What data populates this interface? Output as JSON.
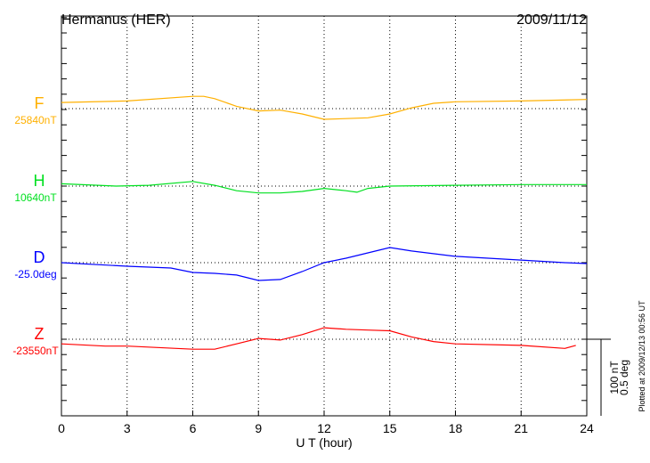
{
  "chart_data": {
    "type": "line",
    "title": "Hermanus (HER)",
    "date": "2009/11/12",
    "xlabel": "U T (hour)",
    "xlim": [
      0,
      24
    ],
    "xticks": [
      "0",
      "3",
      "6",
      "9",
      "12",
      "15",
      "18",
      "21",
      "24"
    ],
    "grid": true,
    "scale_label_1": "100 nT",
    "scale_label_2": "0.5 deg",
    "footer": "Plotted at 2009/12/13 00:56 UT",
    "series": [
      {
        "name": "F",
        "baseline_label": "25840nT",
        "baseline": 25840,
        "unit": "nT",
        "color": "#ffb000",
        "x": [
          0,
          3,
          6,
          6.5,
          7,
          8,
          9,
          10,
          11,
          12,
          13,
          14,
          15,
          16,
          17,
          18,
          21,
          24
        ],
        "values": [
          25848,
          25850,
          25856,
          25856,
          25853,
          25843,
          25837,
          25838,
          25833,
          25826,
          25827,
          25828,
          25833,
          25841,
          25847,
          25849,
          25850,
          25852
        ]
      },
      {
        "name": "H",
        "baseline_label": "10640nT",
        "baseline": 10640,
        "unit": "nT",
        "color": "#00e020",
        "x": [
          0,
          2.5,
          4,
          6,
          7,
          8,
          9,
          10,
          11,
          12,
          13,
          13.5,
          14,
          15,
          18,
          21,
          24
        ],
        "values": [
          10643,
          10640,
          10641,
          10646,
          10641,
          10634,
          10631,
          10631,
          10633,
          10637,
          10634,
          10632,
          10637,
          10640,
          10641,
          10642,
          10642
        ]
      },
      {
        "name": "D",
        "baseline_label": "-25.0deg",
        "baseline": -25.0,
        "unit": "deg",
        "color": "#0000ff",
        "x": [
          0,
          3,
          5,
          6,
          7,
          8,
          9,
          10,
          11,
          12,
          13,
          14,
          15,
          16,
          18,
          21,
          23,
          24
        ],
        "values": [
          -25.0,
          -25.023,
          -25.035,
          -25.064,
          -25.07,
          -25.081,
          -25.116,
          -25.11,
          -25.058,
          -25.0,
          -24.971,
          -24.936,
          -24.901,
          -24.924,
          -24.959,
          -24.983,
          -25.0,
          -25.006
        ]
      },
      {
        "name": "Z",
        "baseline_label": "-23550nT",
        "baseline": -23550,
        "unit": "nT",
        "color": "#ff0000",
        "x": [
          0,
          2,
          3,
          6,
          7,
          8,
          9,
          10,
          11,
          12,
          13,
          14,
          15,
          16,
          17,
          18,
          21,
          23,
          23.5
        ],
        "values": [
          -23556,
          -23559,
          -23559,
          -23563,
          -23563,
          -23556,
          -23549,
          -23551,
          -23544,
          -23535,
          -23537,
          -23538,
          -23539,
          -23547,
          -23553,
          -23556,
          -23558,
          -23562,
          -23558
        ]
      }
    ]
  }
}
